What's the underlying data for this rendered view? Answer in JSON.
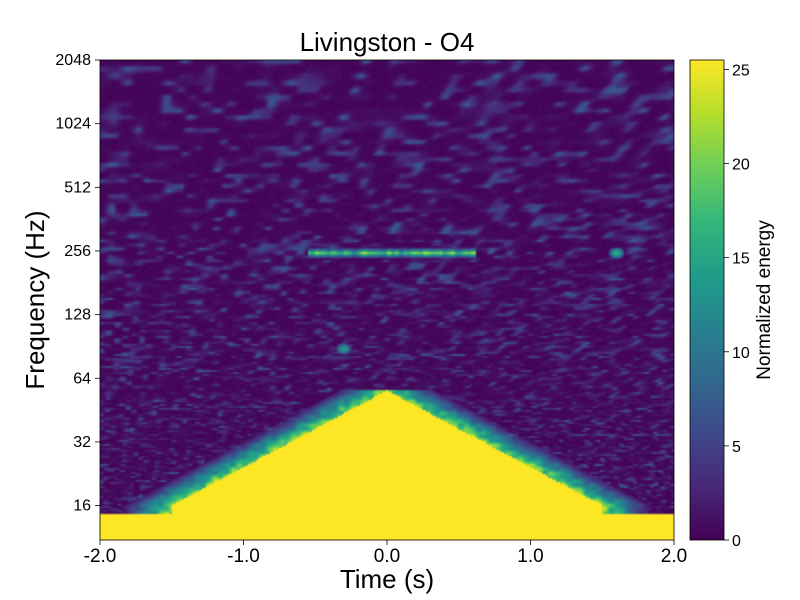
{
  "chart_data": {
    "type": "heatmap",
    "title": "Livingston - O4",
    "xlabel": "Time (s)",
    "ylabel": "Frequency (Hz)",
    "xlim": [
      -2.0,
      2.0
    ],
    "ylim": [
      11,
      2048
    ],
    "yscale": "log2",
    "x_ticks": [
      -2.0,
      -1.0,
      0.0,
      1.0,
      2.0
    ],
    "x_tick_labels": [
      "-2.0",
      "-1.0",
      "0.0",
      "1.0",
      "2.0"
    ],
    "y_ticks": [
      16,
      32,
      64,
      128,
      256,
      512,
      1024,
      2048
    ],
    "y_tick_labels": [
      "16",
      "32",
      "64",
      "128",
      "256",
      "512",
      "1024",
      "2048"
    ],
    "colorbar": {
      "label": "Normalized energy",
      "range": [
        0,
        25.5
      ],
      "ticks": [
        0,
        5,
        10,
        15,
        20,
        25
      ],
      "tick_labels": [
        "0",
        "5",
        "10",
        "15",
        "20",
        "25"
      ],
      "colormap": "viridis"
    },
    "features": [
      {
        "name": "low-frequency saturation",
        "t_range": [
          -2.0,
          2.0
        ],
        "f_range": [
          11,
          14.5
        ],
        "energy": 25.5
      },
      {
        "name": "broadband blob",
        "t_center": 0.0,
        "t_halfwidth_at_16Hz": 1.5,
        "f_peak": 56,
        "energy": 25.5
      },
      {
        "name": "narrow line",
        "f": 250,
        "t_range": [
          -0.55,
          0.62
        ],
        "energy": 24
      },
      {
        "name": "isolated spot",
        "t": 1.6,
        "f": 250,
        "energy": 16
      },
      {
        "name": "isolated spot",
        "t": -0.3,
        "f": 88,
        "energy": 14
      },
      {
        "name": "background noise",
        "energy_range": [
          0,
          6
        ]
      }
    ]
  },
  "colors": {
    "viridis": [
      "#440154",
      "#482878",
      "#3e4989",
      "#31688e",
      "#26828e",
      "#1f9e89",
      "#35b779",
      "#6ece58",
      "#b5de2b",
      "#fde725"
    ]
  }
}
